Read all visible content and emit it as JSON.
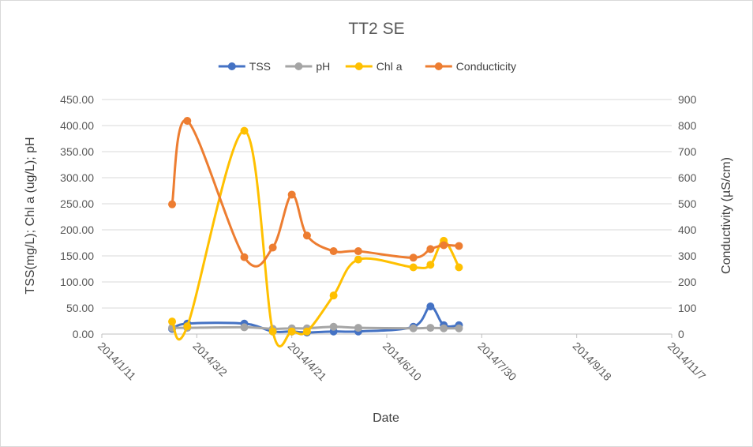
{
  "chart_data": {
    "type": "line",
    "title": "TT2 SE",
    "xlabel": "Date",
    "ylabel_left": "TSS(mg/L); Chl a (ug/L); pH",
    "ylabel_right": "Conductivity  (µS/cm)",
    "ylim_left": [
      0,
      450
    ],
    "ylim_right": [
      0,
      900
    ],
    "y_ticks_left": [
      "0.00",
      "50.00",
      "100.00",
      "150.00",
      "200.00",
      "250.00",
      "300.00",
      "350.00",
      "400.00",
      "450.00"
    ],
    "y_ticks_right": [
      "0",
      "100",
      "200",
      "300",
      "400",
      "500",
      "600",
      "700",
      "800",
      "900"
    ],
    "x_tick_labels": [
      "2014/1/11",
      "2014/3/2",
      "2014/4/21",
      "2014/6/10",
      "2014/7/30",
      "2014/9/18",
      "2014/11/7"
    ],
    "x_range_days": [
      0,
      300
    ],
    "grid": true,
    "legend_position": "top",
    "series": [
      {
        "name": "TSS",
        "axis": "left",
        "color": "#4472c4",
        "x_days": [
          37,
          45,
          75,
          90,
          100,
          108,
          122,
          135,
          164,
          173,
          180,
          188
        ],
        "values": [
          10,
          20,
          20,
          5,
          5,
          3,
          5,
          5,
          14,
          53,
          17,
          17
        ]
      },
      {
        "name": "pH",
        "axis": "left",
        "color": "#a5a5a5",
        "x_days": [
          37,
          45,
          75,
          90,
          100,
          108,
          122,
          135,
          164,
          173,
          180,
          188
        ],
        "values": [
          12,
          12,
          13,
          10,
          11,
          11,
          14,
          12,
          11,
          12,
          11,
          11
        ]
      },
      {
        "name": "Chl a",
        "axis": "left",
        "color": "#ffc000",
        "x_days": [
          37,
          45,
          75,
          90,
          100,
          108,
          122,
          135,
          164,
          173,
          180,
          188
        ],
        "values": [
          24,
          15,
          390,
          5,
          5,
          5,
          74,
          143,
          128,
          133,
          179,
          128
        ]
      },
      {
        "name": "Conducticity",
        "axis": "right",
        "color": "#ed7d31",
        "x_days": [
          37,
          45,
          75,
          90,
          100,
          108,
          122,
          135,
          164,
          173,
          180,
          188
        ],
        "values": [
          498,
          818,
          295,
          332,
          535,
          378,
          318,
          318,
          293,
          326,
          341,
          338
        ]
      }
    ]
  }
}
